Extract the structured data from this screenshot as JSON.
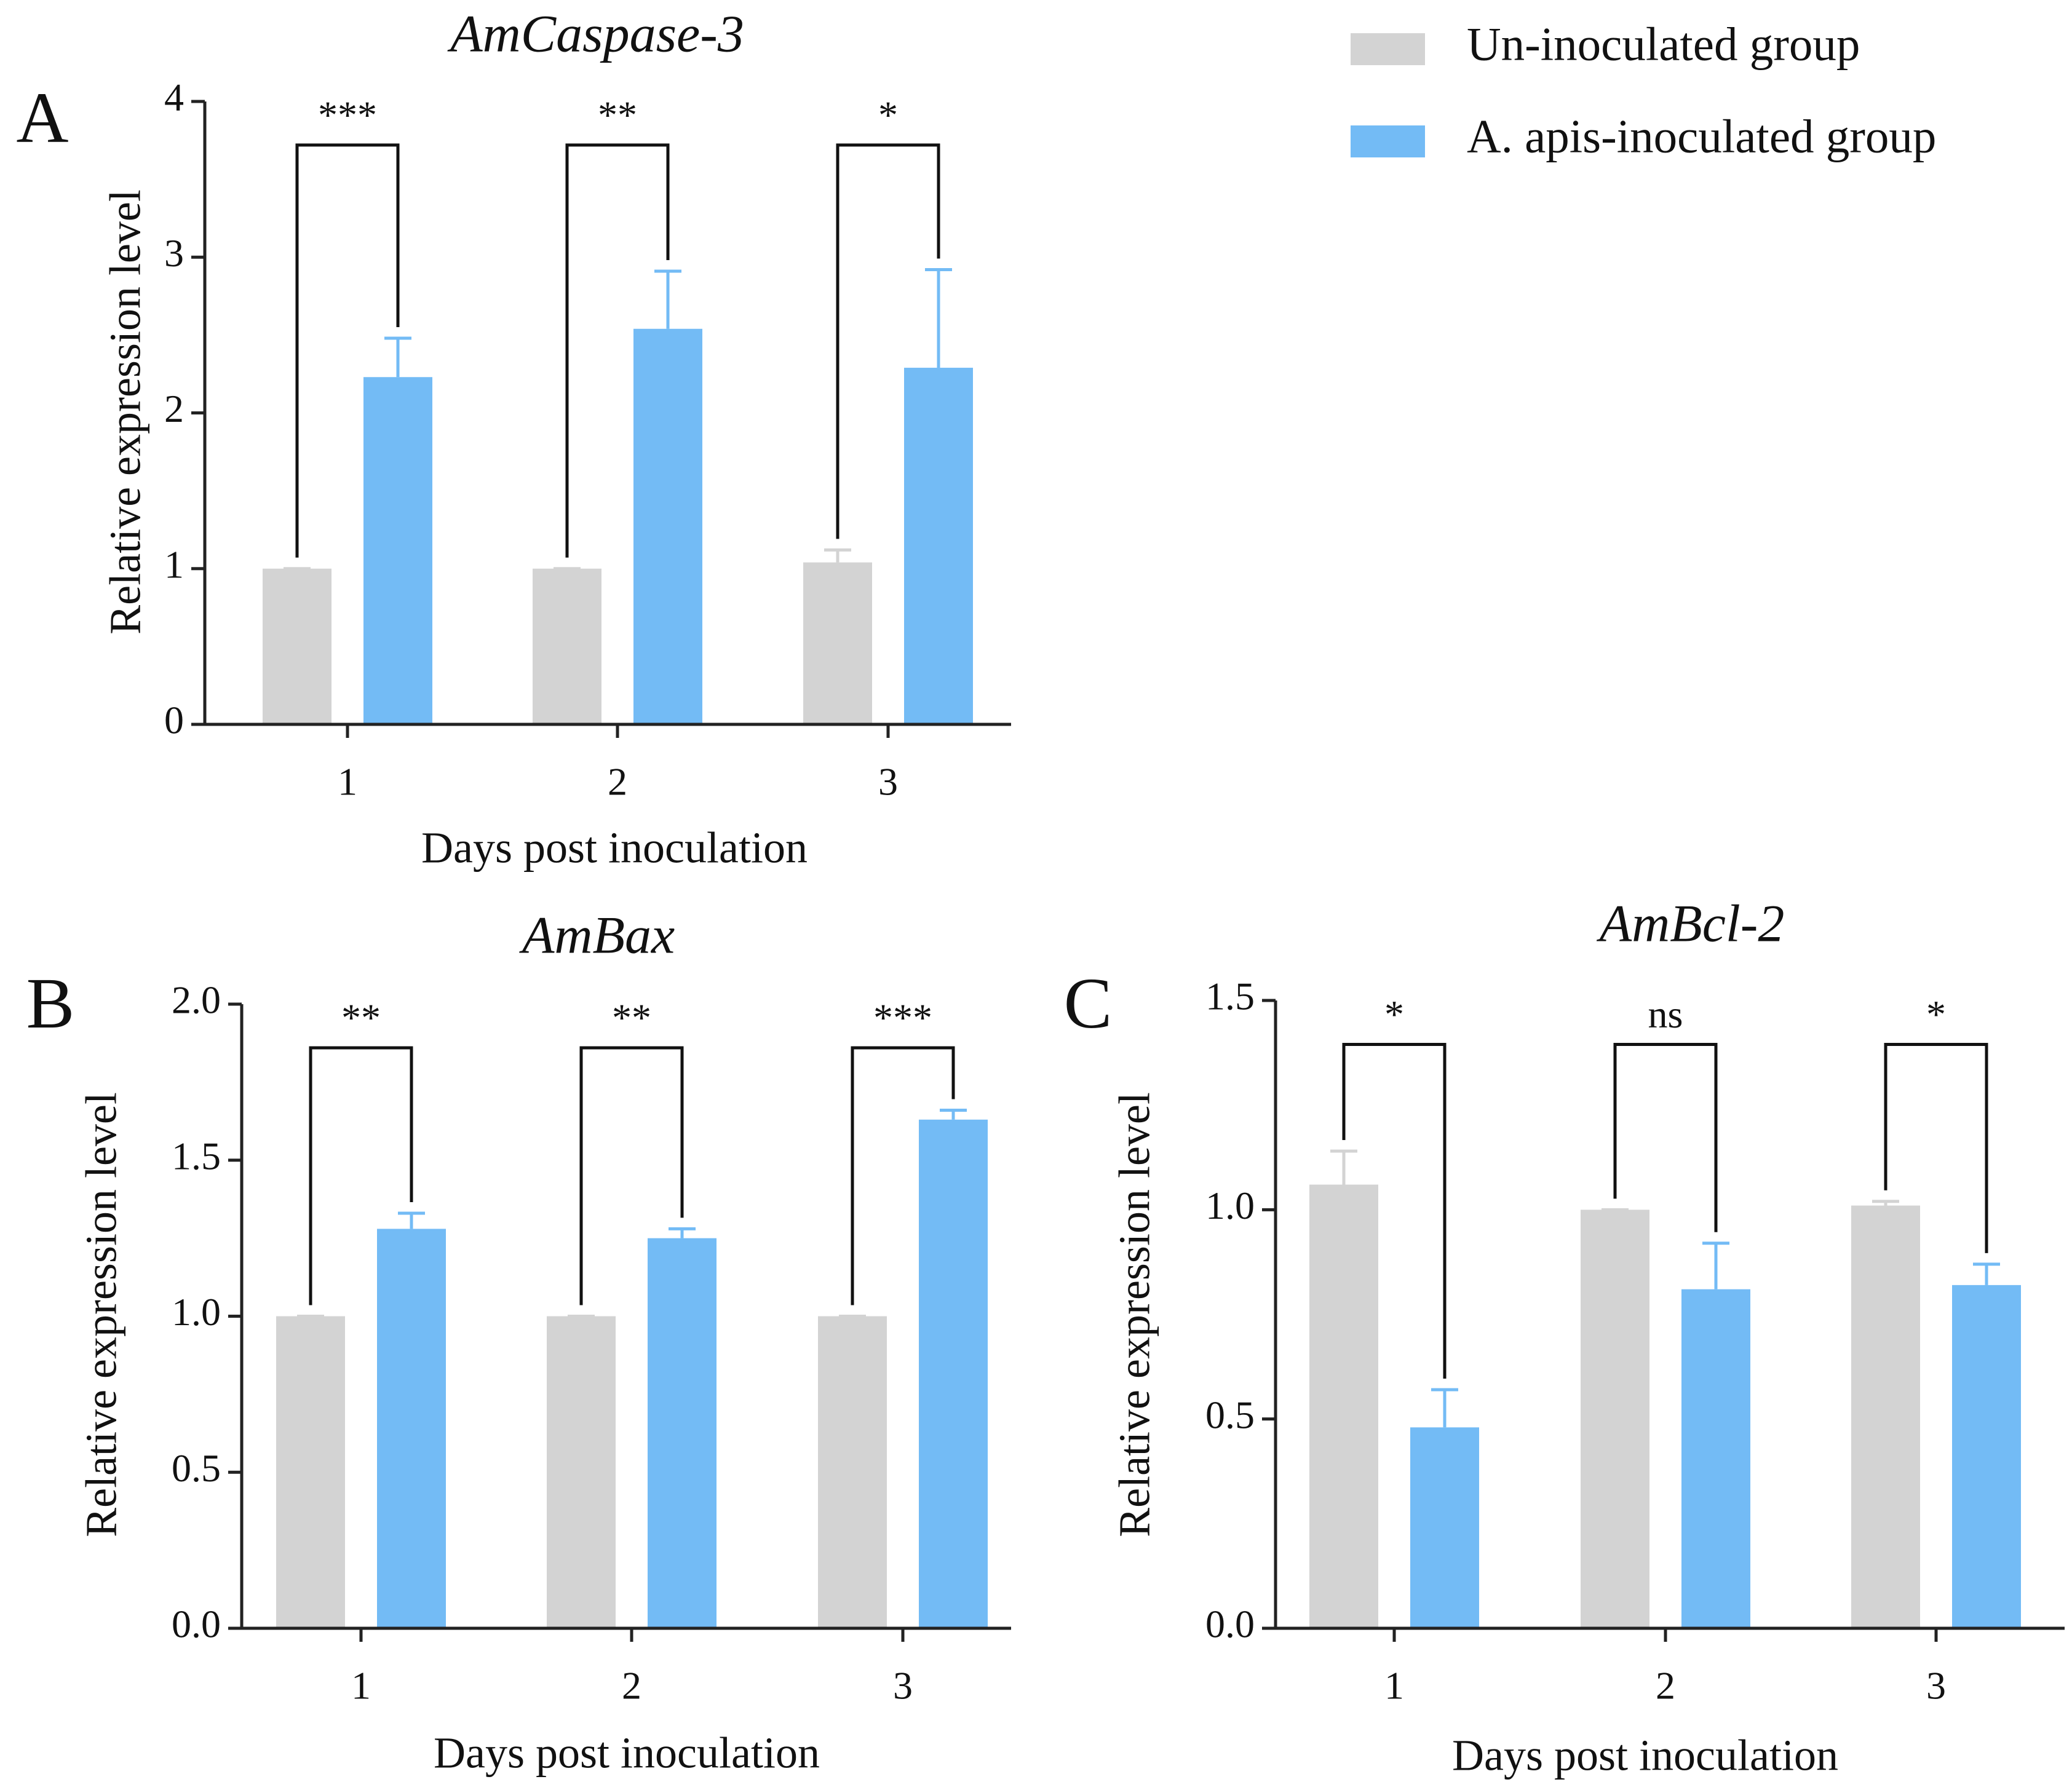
{
  "chart_data": [
    {
      "type": "bar",
      "panel": "A",
      "title": "AmCaspase-3",
      "x_label": "Days post inoculation",
      "y_label": "Relative expression level",
      "categories": [
        "1",
        "2",
        "3"
      ],
      "series": [
        {
          "name": "Un-inoculated group",
          "color": "#d3d3d3",
          "values": [
            1.0,
            1.0,
            1.04
          ],
          "errors": [
            0,
            0,
            0.08
          ]
        },
        {
          "name": "A. apis-inoculated group",
          "color": "#73bbf5",
          "values": [
            2.23,
            2.54,
            2.29
          ],
          "errors": [
            0.25,
            0.37,
            0.63
          ]
        }
      ],
      "significance": [
        "***",
        "**",
        "*"
      ],
      "ylim": [
        0,
        4
      ],
      "yticks": [
        0,
        1,
        2,
        3,
        4
      ]
    },
    {
      "type": "bar",
      "panel": "B",
      "title": "AmBax",
      "x_label": "Days post inoculation",
      "y_label": "Relative expression level",
      "categories": [
        "1",
        "2",
        "3"
      ],
      "series": [
        {
          "color": "#d3d3d3",
          "values": [
            1.0,
            1.0,
            1.0
          ],
          "errors": [
            0,
            0,
            0
          ]
        },
        {
          "color": "#73bbf5",
          "values": [
            1.28,
            1.25,
            1.63
          ],
          "errors": [
            0.05,
            0.03,
            0.03
          ]
        }
      ],
      "significance": [
        "**",
        "**",
        "***"
      ],
      "ylim": [
        0,
        2
      ],
      "yticks": [
        {
          "value": 0,
          "label": "0.0"
        },
        {
          "value": 0.5,
          "label": "0.5"
        },
        {
          "value": 1,
          "label": "1.0"
        },
        {
          "value": 1.5,
          "label": "1.5"
        },
        {
          "value": 2,
          "label": "2.0"
        }
      ]
    },
    {
      "type": "bar",
      "panel": "C",
      "title": "AmBcl-2",
      "x_label": "Days post inoculation",
      "y_label": "Relative expression level",
      "categories": [
        "1",
        "2",
        "3"
      ],
      "series": [
        {
          "color": "#d3d3d3",
          "values": [
            1.06,
            1.0,
            1.01
          ],
          "errors": [
            0.08,
            0,
            0.01
          ]
        },
        {
          "color": "#73bbf5",
          "values": [
            0.48,
            0.81,
            0.82
          ],
          "errors": [
            0.09,
            0.11,
            0.05
          ]
        }
      ],
      "significance": [
        "*",
        "ns",
        "*"
      ],
      "ylim": [
        0,
        1.5
      ],
      "yticks": [
        {
          "value": 0,
          "label": "0.0"
        },
        {
          "value": 0.5,
          "label": "0.5"
        },
        {
          "value": 1,
          "label": "1.0"
        },
        {
          "value": 1.5,
          "label": "1.5"
        }
      ]
    }
  ]
}
